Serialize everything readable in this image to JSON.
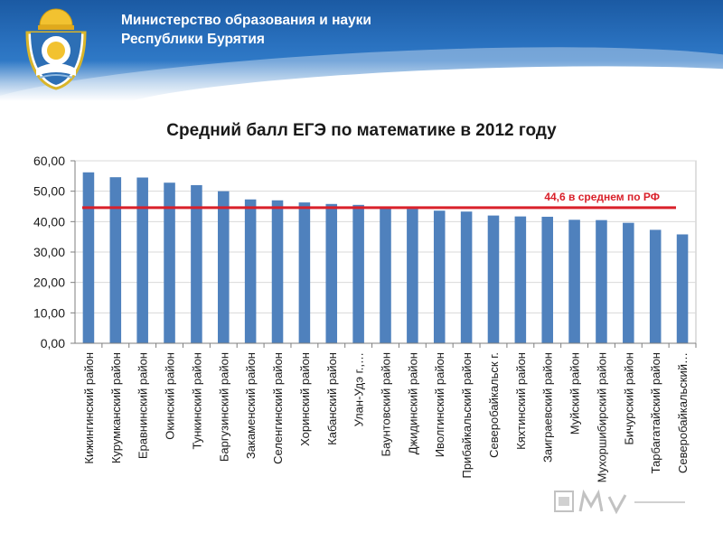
{
  "header": {
    "ministry_line1": "Министерство образования и науки",
    "ministry_line2": "Республики Бурятия",
    "emblem_icon": "buryatia-coat-of-arms-icon"
  },
  "colors": {
    "bar": "#4f81bd",
    "reference_line": "#d9202a",
    "reference_label": "#d9202a"
  },
  "chart_data": {
    "type": "bar",
    "title": "Средний балл ЕГЭ по математике в 2012 году",
    "xlabel": "",
    "ylabel": "",
    "ylim": [
      0,
      60
    ],
    "yticks": [
      "0,00",
      "10,00",
      "20,00",
      "30,00",
      "40,00",
      "50,00",
      "60,00"
    ],
    "grid": true,
    "categories": [
      "Кижингинский район",
      "Курумканский район",
      "Еравнинский район",
      "Окинский район",
      "Тункинский район",
      "Баргузинский район",
      "Закаменский район",
      "Селенгинский район",
      "Хоринский район",
      "Кабанский район",
      "Улан-Удэ г.,…",
      "Баунтовский район",
      "Джидинский район",
      "Иволгинский район",
      "Прибайкальский район",
      "Северобайкальск г.",
      "Кяхтинский район",
      "Заиграевский район",
      "Муйский район",
      "Мухоршибирский район",
      "Бичурский район",
      "Тарбагатайский район",
      "Северобайкальский…"
    ],
    "values": [
      56.2,
      54.6,
      54.5,
      52.8,
      52.0,
      50.0,
      47.3,
      47.0,
      46.3,
      45.8,
      45.5,
      44.6,
      44.2,
      43.6,
      43.3,
      42.0,
      41.7,
      41.6,
      40.6,
      40.5,
      39.6,
      37.3,
      35.8
    ],
    "reference": {
      "value": 44.6,
      "label": "44,6 в среднем по РФ"
    }
  }
}
